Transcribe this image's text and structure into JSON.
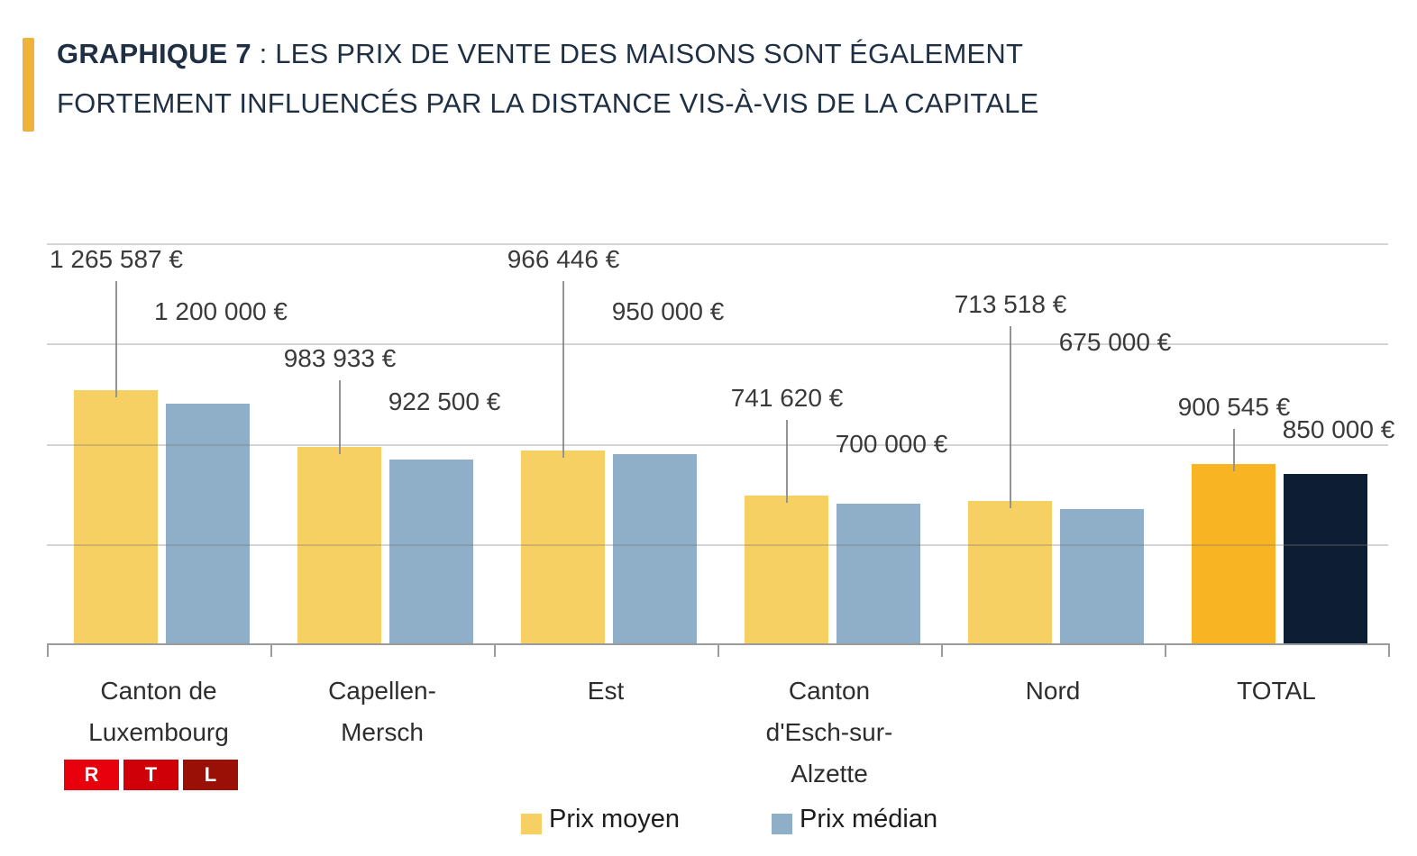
{
  "header": {
    "line1_bold": "GRAPHIQUE 7",
    "line1_rest": " : LES PRIX DE VENTE DES MAISONS SONT ÉGALEMENT",
    "line2": "FORTEMENT INFLUENCÉS PAR LA DISTANCE VIS-À-VIS DE LA CAPITALE"
  },
  "chart_data": {
    "type": "bar",
    "title": "GRAPHIQUE 7 : LES PRIX DE VENTE DES MAISONS SONT ÉGALEMENT FORTEMENT INFLUENCÉS PAR LA DISTANCE VIS-À-VIS DE LA CAPITALE",
    "categories": [
      "Canton de Luxembourg",
      "Capellen-Mersch",
      "Est",
      "Canton d'Esch-sur-Alzette",
      "Nord",
      "TOTAL"
    ],
    "category_lines": [
      [
        "Canton de",
        "Luxembourg"
      ],
      [
        "Capellen-",
        "Mersch"
      ],
      [
        "Est"
      ],
      [
        "Canton",
        "d'Esch-sur-",
        "Alzette"
      ],
      [
        "Nord"
      ],
      [
        "TOTAL"
      ]
    ],
    "series": [
      {
        "name": "Prix moyen",
        "values": [
          1265587,
          983933,
          966446,
          741620,
          713518,
          900545
        ],
        "labels": [
          "1 265 587 €",
          "983 933 €",
          "966 446 €",
          "741 620 €",
          "713 518 €",
          "900 545 €"
        ]
      },
      {
        "name": "Prix médian",
        "values": [
          1200000,
          922500,
          950000,
          700000,
          675000,
          850000
        ],
        "labels": [
          "1 200 000 €",
          "922 500 €",
          "950 000 €",
          "700 000 €",
          "675 000 €",
          "850 000 €"
        ]
      }
    ],
    "ylim": [
      0,
      2000000
    ],
    "grid_step": 500000,
    "grid": true,
    "y_axis_tick_labels_visible": false,
    "legend_position": "bottom",
    "colors": {
      "moyen": "#F7D064",
      "median": "#8FAEC7",
      "total_moyen": "#F9B423",
      "total_median": "#0D1D33",
      "accent": "#F0B23B",
      "title_text": "#1F3044",
      "leader": "#949494",
      "axis": "#9B9B9B",
      "label_text": "#3A3A3A"
    }
  },
  "logo": {
    "name": "RTL",
    "letters": [
      {
        "char": "R",
        "bg": "#E8000D"
      },
      {
        "char": "T",
        "bg": "#D00009"
      },
      {
        "char": "L",
        "bg": "#9B1006"
      }
    ]
  }
}
